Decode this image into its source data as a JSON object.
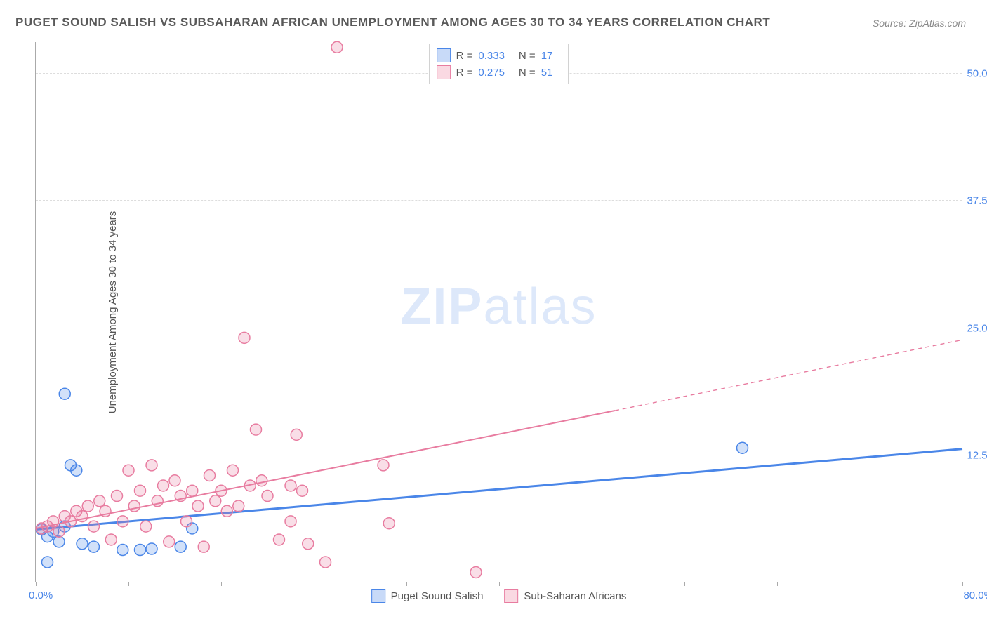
{
  "title": "PUGET SOUND SALISH VS SUBSAHARAN AFRICAN UNEMPLOYMENT AMONG AGES 30 TO 34 YEARS CORRELATION CHART",
  "source": "Source: ZipAtlas.com",
  "watermark_bold": "ZIP",
  "watermark_rest": "atlas",
  "y_axis_title": "Unemployment Among Ages 30 to 34 years",
  "chart": {
    "type": "scatter",
    "xlim": [
      0,
      80
    ],
    "ylim": [
      0,
      53
    ],
    "x_min_label": "0.0%",
    "x_max_label": "80.0%",
    "x_ticks": [
      0,
      8,
      16,
      24,
      32,
      40,
      48,
      56,
      64,
      72,
      80
    ],
    "y_gridlines": [
      {
        "val": 12.5,
        "label": "12.5%"
      },
      {
        "val": 25.0,
        "label": "25.0%"
      },
      {
        "val": 37.5,
        "label": "37.5%"
      },
      {
        "val": 50.0,
        "label": "50.0%"
      }
    ],
    "marker_radius": 8,
    "marker_stroke_width": 1.5,
    "marker_fill_opacity": 0.25,
    "background_color": "#ffffff",
    "grid_color": "#dddddd",
    "series": [
      {
        "name": "Puget Sound Salish",
        "color": "#4a86e8",
        "r_label": "R =",
        "r_value": "0.333",
        "n_label": "N =",
        "n_value": "17",
        "trend": {
          "x1": 0,
          "y1": 5.2,
          "x2": 80,
          "y2": 13.1,
          "solid_to_x": 80,
          "width": 3
        },
        "points": [
          [
            0.5,
            5.2
          ],
          [
            1,
            4.5
          ],
          [
            1.5,
            5
          ],
          [
            2,
            4
          ],
          [
            2.5,
            5.5
          ],
          [
            1,
            2
          ],
          [
            2.5,
            18.5
          ],
          [
            3,
            11.5
          ],
          [
            3.5,
            11
          ],
          [
            4,
            3.8
          ],
          [
            5,
            3.5
          ],
          [
            7.5,
            3.2
          ],
          [
            9,
            3.2
          ],
          [
            10,
            3.3
          ],
          [
            12.5,
            3.5
          ],
          [
            13.5,
            5.3
          ],
          [
            61,
            13.2
          ]
        ]
      },
      {
        "name": "Sub-Saharan Africans",
        "color": "#e87ca0",
        "r_label": "R =",
        "r_value": "0.275",
        "n_label": "N =",
        "n_value": "51",
        "trend": {
          "x1": 0,
          "y1": 5.3,
          "x2": 80,
          "y2": 23.8,
          "solid_to_x": 50,
          "width": 2
        },
        "points": [
          [
            0.5,
            5.3
          ],
          [
            1,
            5.5
          ],
          [
            1.5,
            6
          ],
          [
            2,
            5
          ],
          [
            2.5,
            6.5
          ],
          [
            3,
            6
          ],
          [
            3.5,
            7
          ],
          [
            4,
            6.5
          ],
          [
            4.5,
            7.5
          ],
          [
            5,
            5.5
          ],
          [
            5.5,
            8
          ],
          [
            6,
            7
          ],
          [
            6.5,
            4.2
          ],
          [
            7,
            8.5
          ],
          [
            7.5,
            6
          ],
          [
            8,
            11
          ],
          [
            8.5,
            7.5
          ],
          [
            9,
            9
          ],
          [
            9.5,
            5.5
          ],
          [
            10,
            11.5
          ],
          [
            10.5,
            8
          ],
          [
            11,
            9.5
          ],
          [
            11.5,
            4
          ],
          [
            12,
            10
          ],
          [
            12.5,
            8.5
          ],
          [
            13,
            6
          ],
          [
            13.5,
            9
          ],
          [
            14,
            7.5
          ],
          [
            14.5,
            3.5
          ],
          [
            15,
            10.5
          ],
          [
            15.5,
            8
          ],
          [
            16,
            9
          ],
          [
            16.5,
            7
          ],
          [
            17,
            11
          ],
          [
            17.5,
            7.5
          ],
          [
            18,
            24
          ],
          [
            18.5,
            9.5
          ],
          [
            19,
            15
          ],
          [
            19.5,
            10
          ],
          [
            20,
            8.5
          ],
          [
            21,
            4.2
          ],
          [
            22,
            6
          ],
          [
            22.5,
            14.5
          ],
          [
            23,
            9
          ],
          [
            23.5,
            3.8
          ],
          [
            25,
            2
          ],
          [
            26,
            52.5
          ],
          [
            30,
            11.5
          ],
          [
            30.5,
            5.8
          ],
          [
            38,
            1
          ],
          [
            22,
            9.5
          ]
        ]
      }
    ]
  }
}
